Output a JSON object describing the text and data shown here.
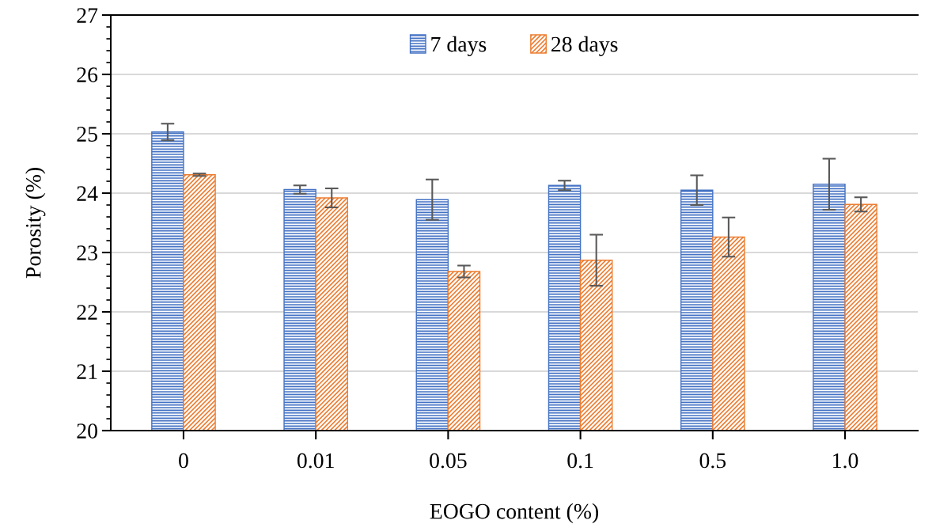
{
  "chart_data": {
    "type": "bar",
    "xlabel": "EOGO content (%)",
    "ylabel": "Porosity (%)",
    "categories": [
      "0",
      "0.01",
      "0.05",
      "0.1",
      "0.5",
      "1.0"
    ],
    "series": [
      {
        "name": "7 days",
        "color": "#4472c4",
        "values": [
          25.03,
          24.06,
          23.89,
          24.13,
          24.05,
          24.15
        ],
        "errors": [
          0.14,
          0.07,
          0.34,
          0.08,
          0.25,
          0.43
        ]
      },
      {
        "name": "28 days",
        "color": "#ed7d31",
        "values": [
          24.31,
          23.92,
          22.68,
          22.87,
          23.26,
          23.81
        ],
        "errors": [
          0.02,
          0.16,
          0.1,
          0.43,
          0.33,
          0.12
        ]
      }
    ],
    "ylim": [
      20,
      27
    ],
    "yticks": [
      20,
      21,
      22,
      23,
      24,
      25,
      26,
      27
    ],
    "grid": "y",
    "legend": "top"
  }
}
